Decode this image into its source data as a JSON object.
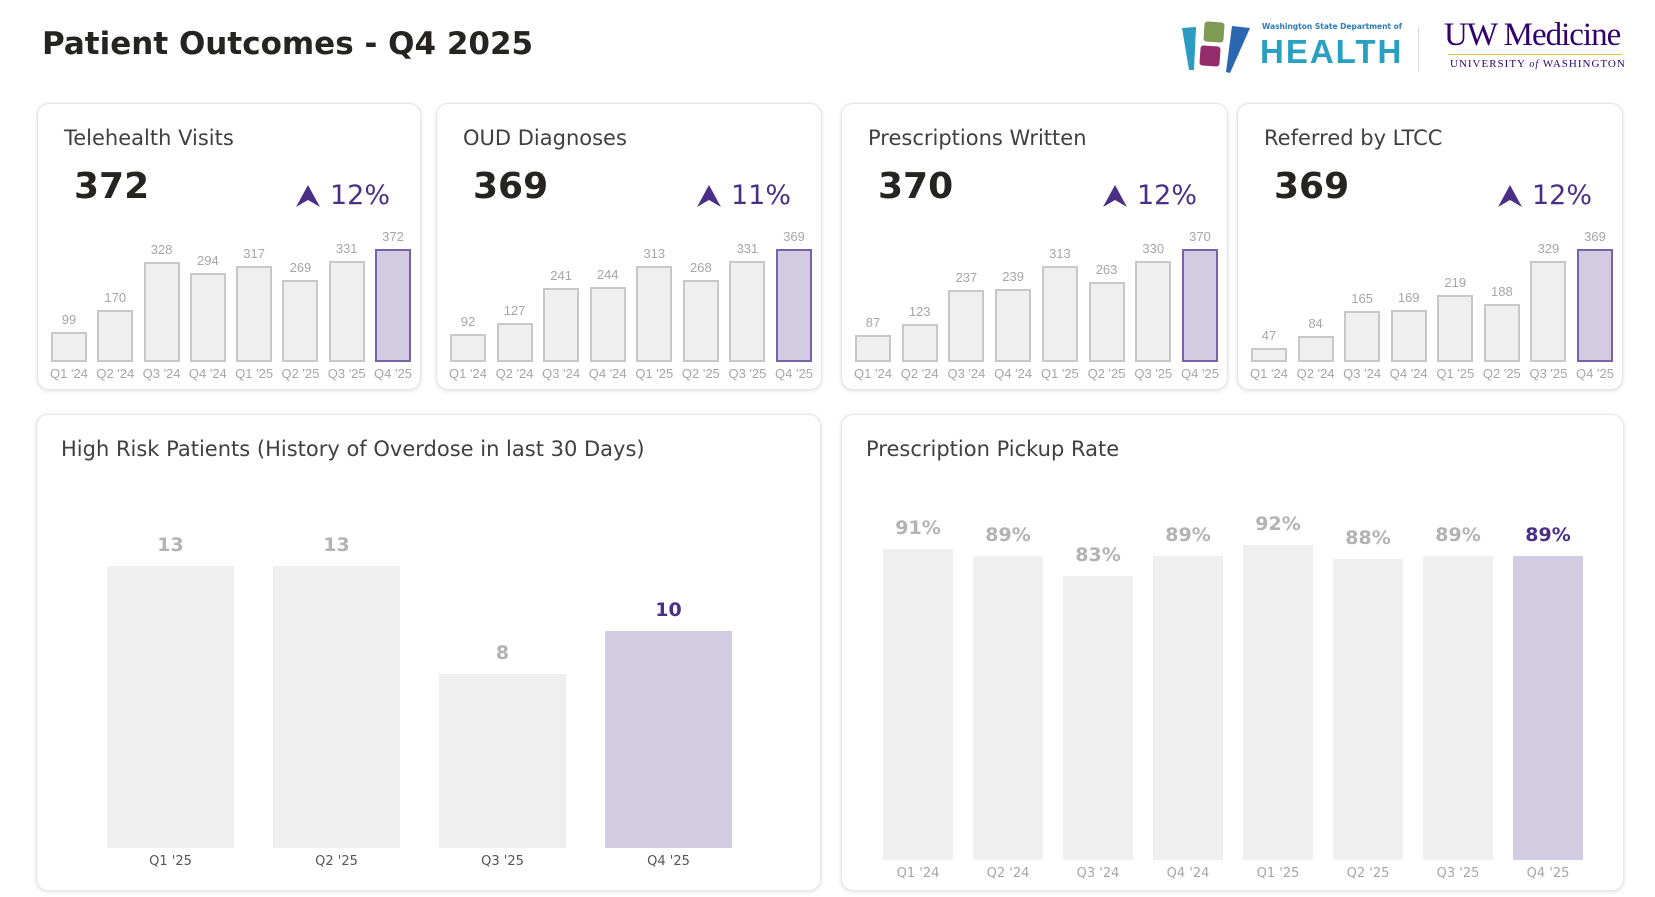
{
  "header": {
    "title": "Patient Outcomes - Q4 2025"
  },
  "logos": {
    "health_small": "Washington State Department of",
    "health_main": "HEALTH",
    "uw_main": "UW Medicine",
    "uw_sub_1": "UNIVERSITY",
    "uw_sub_of": "of",
    "uw_sub_2": "WASHINGTON"
  },
  "colors": {
    "accent": "#4b2f87",
    "highlight_fill": "#d3cbe2",
    "bar_fill": "#efefef",
    "bar_border": "#c8c8c8",
    "label_gray": "#b3b3b3"
  },
  "kpis": [
    {
      "title": "Telehealth Visits",
      "value": "372",
      "delta": "12%",
      "delta_icon": "arrow-up-icon",
      "chart_data": {
        "type": "bar",
        "categories": [
          "Q1 '24",
          "Q2 '24",
          "Q3 '24",
          "Q4 '24",
          "Q1 '25",
          "Q2 '25",
          "Q3 '25",
          "Q4 '25"
        ],
        "values": [
          99,
          170,
          328,
          294,
          317,
          269,
          331,
          372
        ],
        "highlight": "Q4 '25"
      }
    },
    {
      "title": "OUD Diagnoses",
      "value": "369",
      "delta": "11%",
      "delta_icon": "arrow-up-icon",
      "chart_data": {
        "type": "bar",
        "categories": [
          "Q1 '24",
          "Q2 '24",
          "Q3 '24",
          "Q4 '24",
          "Q1 '25",
          "Q2 '25",
          "Q3 '25",
          "Q4 '25"
        ],
        "values": [
          92,
          127,
          241,
          244,
          313,
          268,
          331,
          369
        ],
        "highlight": "Q4 '25"
      }
    },
    {
      "title": "Prescriptions Written",
      "value": "370",
      "delta": "12%",
      "delta_icon": "arrow-up-icon",
      "chart_data": {
        "type": "bar",
        "categories": [
          "Q1 '24",
          "Q2 '24",
          "Q3 '24",
          "Q4 '24",
          "Q1 '25",
          "Q2 '25",
          "Q3 '25",
          "Q4 '25"
        ],
        "values": [
          87,
          123,
          237,
          239,
          313,
          263,
          330,
          370
        ],
        "highlight": "Q4 '25"
      }
    },
    {
      "title": "Referred by LTCC",
      "value": "369",
      "delta": "12%",
      "delta_icon": "arrow-up-icon",
      "chart_data": {
        "type": "bar",
        "categories": [
          "Q1 '24",
          "Q2 '24",
          "Q3 '24",
          "Q4 '24",
          "Q1 '25",
          "Q2 '25",
          "Q3 '25",
          "Q4 '25"
        ],
        "values": [
          47,
          84,
          165,
          169,
          219,
          188,
          329,
          369
        ],
        "highlight": "Q4 '25"
      }
    }
  ],
  "chart_data": [
    {
      "type": "bar",
      "title": "High Risk Patients (History of Overdose in last 30 Days)",
      "categories": [
        "Q1 '25",
        "Q2 '25",
        "Q3 '25",
        "Q4 '25"
      ],
      "values": [
        13,
        13,
        8,
        10
      ],
      "labels": [
        "13",
        "13",
        "8",
        "10"
      ],
      "highlight": "Q4 '25",
      "ylim": [
        0,
        13
      ]
    },
    {
      "type": "bar",
      "title": "Prescription Pickup Rate",
      "categories": [
        "Q1 '24",
        "Q2 '24",
        "Q3 '24",
        "Q4 '24",
        "Q1 '25",
        "Q2 '25",
        "Q3 '25",
        "Q4 '25"
      ],
      "values": [
        91,
        89,
        83,
        89,
        92,
        88,
        89,
        89
      ],
      "labels": [
        "91%",
        "89%",
        "83%",
        "89%",
        "92%",
        "88%",
        "89%",
        "89%"
      ],
      "highlight": "Q4 '25",
      "ylim": [
        0,
        100
      ],
      "unit": "%"
    }
  ]
}
